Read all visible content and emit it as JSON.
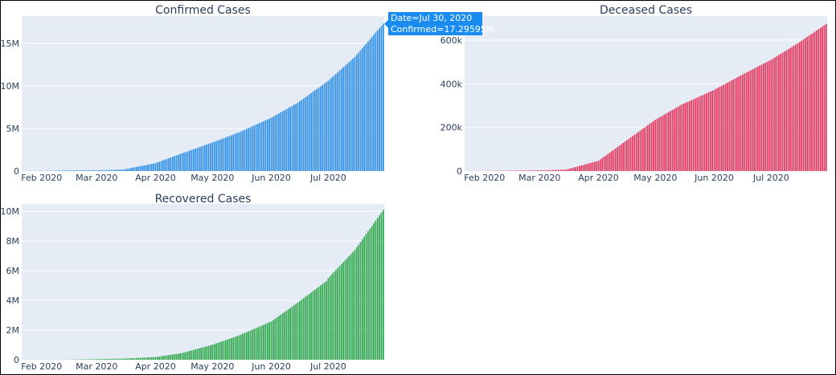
{
  "colors": {
    "confirmed": "#2e8fea",
    "deceased": "#e8355c",
    "recovered": "#2ea84b",
    "plot_bg": "#e5ecf6",
    "grid": "#ffffff",
    "tooltip_bg": "#1a8cf0"
  },
  "tooltip": {
    "line1": "Date=Jul 30, 2020",
    "line2": "Confirmed=17.29595M"
  },
  "chart_data": [
    {
      "type": "bar",
      "title": "Confirmed Cases",
      "x_start": "2020-01-22",
      "x_end": "2020-07-30",
      "x_ticks": [
        "Feb 2020",
        "Mar 2020",
        "Apr 2020",
        "May 2020",
        "Jun 2020",
        "Jul 2020"
      ],
      "y_ticks": [
        "0",
        "5M",
        "10M",
        "15M"
      ],
      "y_tick_values": [
        0,
        5000000,
        10000000,
        15000000
      ],
      "ylim": [
        0,
        18200000
      ],
      "series": [
        {
          "values_at": [
            [
              "2020-01-22",
              555
            ],
            [
              "2020-02-01",
              12000
            ],
            [
              "2020-02-15",
              69000
            ],
            [
              "2020-03-01",
              88000
            ],
            [
              "2020-03-15",
              168000
            ],
            [
              "2020-04-01",
              930000
            ],
            [
              "2020-04-15",
              2080000
            ],
            [
              "2020-05-01",
              3350000
            ],
            [
              "2020-05-15",
              4540000
            ],
            [
              "2020-06-01",
              6260000
            ],
            [
              "2020-06-15",
              8030000
            ],
            [
              "2020-07-01",
              10600000
            ],
            [
              "2020-07-15",
              13400000
            ],
            [
              "2020-07-30",
              17295950
            ]
          ]
        }
      ]
    },
    {
      "type": "bar",
      "title": "Deceased Cases",
      "x_start": "2020-01-22",
      "x_end": "2020-07-30",
      "x_ticks": [
        "Feb 2020",
        "Mar 2020",
        "Apr 2020",
        "May 2020",
        "Jun 2020",
        "Jul 2020"
      ],
      "y_ticks": [
        "0",
        "200k",
        "400k",
        "600k"
      ],
      "y_tick_values": [
        0,
        200000,
        400000,
        600000
      ],
      "ylim": [
        0,
        710000
      ],
      "series": [
        {
          "values_at": [
            [
              "2020-01-22",
              17
            ],
            [
              "2020-02-01",
              259
            ],
            [
              "2020-02-15",
              1660
            ],
            [
              "2020-03-01",
              3000
            ],
            [
              "2020-03-15",
              6500
            ],
            [
              "2020-04-01",
              47000
            ],
            [
              "2020-04-15",
              135000
            ],
            [
              "2020-05-01",
              235000
            ],
            [
              "2020-05-15",
              305000
            ],
            [
              "2020-06-01",
              372000
            ],
            [
              "2020-06-15",
              438000
            ],
            [
              "2020-07-01",
              510000
            ],
            [
              "2020-07-15",
              585000
            ],
            [
              "2020-07-30",
              674000
            ]
          ]
        }
      ]
    },
    {
      "type": "bar",
      "title": "Recovered Cases",
      "x_start": "2020-01-22",
      "x_end": "2020-07-30",
      "x_ticks": [
        "Feb 2020",
        "Mar 2020",
        "Apr 2020",
        "May 2020",
        "Jun 2020",
        "Jul 2020"
      ],
      "y_ticks": [
        "0",
        "2M",
        "4M",
        "6M",
        "8M",
        "10M"
      ],
      "y_tick_values": [
        0,
        2000000,
        4000000,
        6000000,
        8000000,
        10000000
      ],
      "ylim": [
        0,
        10500000
      ],
      "series": [
        {
          "values_at": [
            [
              "2020-01-22",
              28
            ],
            [
              "2020-02-01",
              300
            ],
            [
              "2020-02-15",
              9300
            ],
            [
              "2020-03-01",
              42000
            ],
            [
              "2020-03-15",
              77000
            ],
            [
              "2020-04-01",
              180000
            ],
            [
              "2020-04-15",
              450000
            ],
            [
              "2020-05-01",
              1010000
            ],
            [
              "2020-05-15",
              1640000
            ],
            [
              "2020-06-01",
              2580000
            ],
            [
              "2020-06-15",
              3860000
            ],
            [
              "2020-06-30",
              5300000
            ],
            [
              "2020-07-01",
              5500000
            ],
            [
              "2020-07-15",
              7400000
            ],
            [
              "2020-07-30",
              10100000
            ]
          ]
        }
      ]
    }
  ]
}
